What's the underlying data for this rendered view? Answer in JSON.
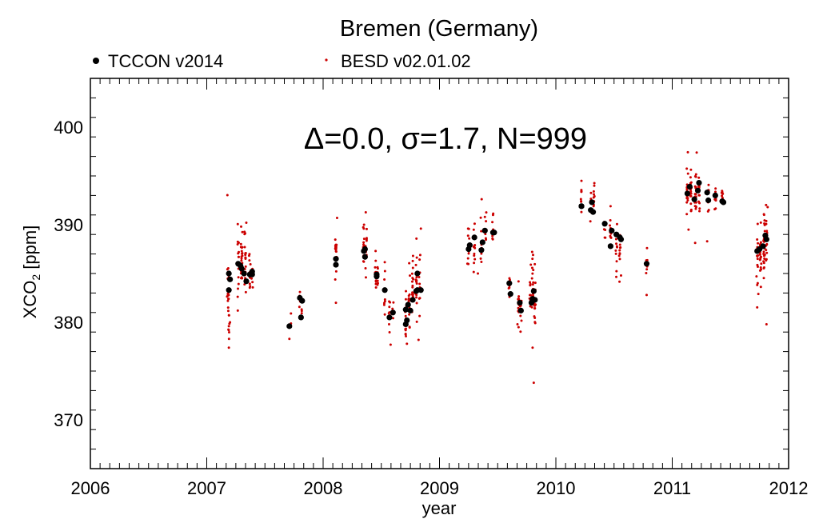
{
  "chart_data": {
    "type": "scatter",
    "title": "Bremen (Germany)",
    "annotation": "Δ=0.0, σ=1.7, N=999",
    "xlabel": "year",
    "ylabel_main": "XCO",
    "ylabel_sub": "2",
    "ylabel_unit": " [ppm]",
    "xlim": [
      2006,
      2012
    ],
    "ylim": [
      365,
      405
    ],
    "x_ticks": [
      2006,
      2007,
      2008,
      2009,
      2010,
      2011,
      2012
    ],
    "y_ticks": [
      370,
      380,
      390,
      400
    ],
    "legend_placement": "top",
    "series": [
      {
        "name": "TCCON v2014",
        "color": "#000000",
        "marker": "filled-circle-large",
        "points": [
          [
            2007.19,
            383.3
          ],
          [
            2007.19,
            385.0
          ],
          [
            2007.2,
            384.4
          ],
          [
            2007.27,
            386.0
          ],
          [
            2007.29,
            385.8
          ],
          [
            2007.3,
            385.5
          ],
          [
            2007.32,
            385.0
          ],
          [
            2007.34,
            384.2
          ],
          [
            2007.37,
            384.9
          ],
          [
            2007.39,
            384.9
          ],
          [
            2007.39,
            385.2
          ],
          [
            2007.71,
            379.6
          ],
          [
            2007.8,
            382.5
          ],
          [
            2007.81,
            380.5
          ],
          [
            2007.82,
            382.2
          ],
          [
            2008.11,
            386.5
          ],
          [
            2008.11,
            385.9
          ],
          [
            2008.35,
            387.3
          ],
          [
            2008.36,
            386.7
          ],
          [
            2008.36,
            387.5
          ],
          [
            2008.46,
            384.7
          ],
          [
            2008.46,
            384.9
          ],
          [
            2008.53,
            383.3
          ],
          [
            2008.57,
            380.5
          ],
          [
            2008.6,
            381.0
          ],
          [
            2008.71,
            379.8
          ],
          [
            2008.71,
            381.3
          ],
          [
            2008.72,
            380.2
          ],
          [
            2008.73,
            381.8
          ],
          [
            2008.75,
            381.2
          ],
          [
            2008.77,
            382.3
          ],
          [
            2008.8,
            383.2
          ],
          [
            2008.81,
            385.0
          ],
          [
            2008.81,
            383.3
          ],
          [
            2008.84,
            383.3
          ],
          [
            2009.25,
            387.5
          ],
          [
            2009.26,
            387.9
          ],
          [
            2009.3,
            388.7
          ],
          [
            2009.36,
            387.4
          ],
          [
            2009.37,
            388.2
          ],
          [
            2009.39,
            389.4
          ],
          [
            2009.46,
            389.2
          ],
          [
            2009.47,
            389.2
          ],
          [
            2009.6,
            384.0
          ],
          [
            2009.61,
            382.9
          ],
          [
            2009.69,
            382.0
          ],
          [
            2009.7,
            381.2
          ],
          [
            2009.79,
            382.0
          ],
          [
            2009.8,
            382.4
          ],
          [
            2009.81,
            383.2
          ],
          [
            2009.82,
            382.3
          ],
          [
            2010.22,
            391.9
          ],
          [
            2010.22,
            391.9
          ],
          [
            2010.3,
            391.5
          ],
          [
            2010.31,
            392.3
          ],
          [
            2010.32,
            391.3
          ],
          [
            2010.42,
            390.1
          ],
          [
            2010.47,
            387.8
          ],
          [
            2010.48,
            389.4
          ],
          [
            2010.52,
            389.0
          ],
          [
            2010.55,
            388.7
          ],
          [
            2010.56,
            388.5
          ],
          [
            2010.78,
            386.0
          ],
          [
            2011.13,
            393.2
          ],
          [
            2011.15,
            393.9
          ],
          [
            2011.19,
            392.6
          ],
          [
            2011.22,
            393.5
          ],
          [
            2011.23,
            394.3
          ],
          [
            2011.3,
            393.3
          ],
          [
            2011.31,
            392.5
          ],
          [
            2011.37,
            393.0
          ],
          [
            2011.43,
            392.4
          ],
          [
            2011.44,
            392.3
          ],
          [
            2011.73,
            387.3
          ],
          [
            2011.75,
            387.5
          ],
          [
            2011.78,
            387.8
          ],
          [
            2011.8,
            388.9
          ],
          [
            2011.81,
            388.5
          ]
        ]
      },
      {
        "name": "BESD v02.01.02",
        "color": "#cc0000",
        "marker": "small-dot",
        "clusters": [
          [
            2007.18,
            383.3,
            2.5,
            14
          ],
          [
            2007.19,
            381.5,
            2.2,
            10
          ],
          [
            2007.27,
            386.0,
            1.8,
            16
          ],
          [
            2007.3,
            386.5,
            1.8,
            22
          ],
          [
            2007.33,
            386.0,
            1.8,
            18
          ],
          [
            2007.37,
            385.0,
            1.2,
            10
          ],
          [
            2007.39,
            384.6,
            0.8,
            6
          ],
          [
            2007.72,
            379.8,
            0.6,
            3
          ],
          [
            2007.8,
            382.4,
            0.8,
            6
          ],
          [
            2007.82,
            381.0,
            0.8,
            4
          ],
          [
            2008.11,
            387.0,
            1.8,
            18
          ],
          [
            2008.35,
            387.3,
            1.3,
            14
          ],
          [
            2008.37,
            386.8,
            1.5,
            10
          ],
          [
            2008.45,
            384.8,
            1.4,
            10
          ],
          [
            2008.47,
            385.5,
            1.2,
            6
          ],
          [
            2008.53,
            383.6,
            1.4,
            8
          ],
          [
            2008.57,
            380.8,
            1.3,
            10
          ],
          [
            2008.6,
            381.2,
            1.0,
            6
          ],
          [
            2008.71,
            380.5,
            1.5,
            16
          ],
          [
            2008.74,
            382.0,
            1.6,
            16
          ],
          [
            2008.77,
            383.0,
            1.6,
            16
          ],
          [
            2008.8,
            384.0,
            1.6,
            18
          ],
          [
            2008.83,
            384.2,
            1.5,
            10
          ],
          [
            2009.25,
            387.5,
            1.2,
            10
          ],
          [
            2009.3,
            388.4,
            1.2,
            12
          ],
          [
            2009.36,
            388.0,
            1.5,
            12
          ],
          [
            2009.4,
            389.0,
            0.8,
            6
          ],
          [
            2009.46,
            389.5,
            0.8,
            6
          ],
          [
            2009.6,
            383.8,
            0.9,
            8
          ],
          [
            2009.68,
            382.0,
            1.2,
            14
          ],
          [
            2009.7,
            381.3,
            1.0,
            8
          ],
          [
            2009.78,
            382.5,
            1.2,
            12
          ],
          [
            2009.8,
            383.5,
            1.8,
            16
          ],
          [
            2009.82,
            383.0,
            1.8,
            14
          ],
          [
            2010.22,
            392.3,
            1.0,
            8
          ],
          [
            2010.3,
            392.0,
            1.0,
            10
          ],
          [
            2010.33,
            392.5,
            0.9,
            8
          ],
          [
            2010.42,
            389.8,
            0.9,
            8
          ],
          [
            2010.47,
            389.0,
            1.2,
            10
          ],
          [
            2010.52,
            388.0,
            1.2,
            10
          ],
          [
            2010.55,
            387.0,
            1.3,
            10
          ],
          [
            2010.78,
            386.0,
            0.8,
            8
          ],
          [
            2011.13,
            393.5,
            1.3,
            20
          ],
          [
            2011.16,
            393.2,
            1.2,
            22
          ],
          [
            2011.2,
            393.0,
            1.2,
            20
          ],
          [
            2011.23,
            393.5,
            1.0,
            16
          ],
          [
            2011.31,
            393.0,
            1.0,
            10
          ],
          [
            2011.37,
            393.0,
            0.8,
            8
          ],
          [
            2011.43,
            393.0,
            0.8,
            8
          ],
          [
            2011.73,
            386.8,
            1.6,
            18
          ],
          [
            2011.76,
            387.0,
            1.6,
            20
          ],
          [
            2011.79,
            388.0,
            1.8,
            24
          ],
          [
            2011.81,
            388.3,
            1.5,
            16
          ]
        ],
        "outliers": [
          [
            2007.19,
            377.4
          ],
          [
            2007.19,
            379.6
          ],
          [
            2007.2,
            380.0
          ],
          [
            2007.34,
            390.2
          ],
          [
            2007.71,
            378.3
          ],
          [
            2008.12,
            390.7
          ],
          [
            2008.11,
            382.0
          ],
          [
            2008.53,
            380.8
          ],
          [
            2008.58,
            377.7
          ],
          [
            2008.72,
            377.8
          ],
          [
            2008.84,
            389.6
          ],
          [
            2008.82,
            378.2
          ],
          [
            2009.39,
            390.8
          ],
          [
            2009.46,
            391.0
          ],
          [
            2009.24,
            386.0
          ],
          [
            2009.33,
            385.0
          ],
          [
            2009.8,
            377.4
          ],
          [
            2009.81,
            373.8
          ],
          [
            2009.67,
            379.8
          ],
          [
            2010.22,
            394.5
          ],
          [
            2010.33,
            394.0
          ],
          [
            2010.47,
            391.9
          ],
          [
            2010.56,
            384.8
          ],
          [
            2010.78,
            382.8
          ],
          [
            2011.21,
            397.4
          ],
          [
            2011.3,
            388.3
          ],
          [
            2011.14,
            389.5
          ],
          [
            2011.81,
            379.8
          ],
          [
            2011.74,
            382.9
          ],
          [
            2011.82,
            391.8
          ]
        ]
      }
    ]
  }
}
